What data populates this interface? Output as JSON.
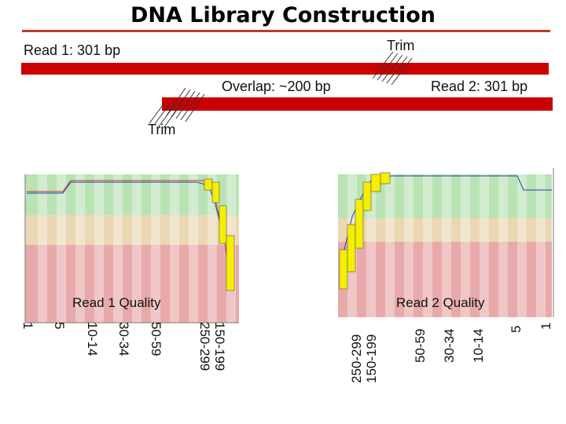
{
  "title": "DNA Library Construction",
  "read1_label": "Read 1: 301 bp",
  "read2_label": "Read 2: 301 bp",
  "overlap_label": "Overlap: ~200 bp",
  "trim_label_top": "Trim",
  "trim_label_bottom": "Trim",
  "quality_panels": {
    "read1": {
      "label": "Read 1 Quality",
      "x_ticks": [
        "1",
        "5",
        "10-14",
        "30-34",
        "50-59",
        "250-299",
        "150-199"
      ]
    },
    "read2": {
      "label": "Read 2 Quality",
      "x_ticks": [
        "250-299",
        "150-199",
        "50-59",
        "30-34",
        "10-14",
        "5",
        "1"
      ]
    }
  },
  "colors": {
    "accent": "#cc0000",
    "title_rule": "#c0392b",
    "quality_good": "#b9e3b4",
    "quality_medium": "#ead7b4",
    "quality_poor": "#e8a9aa",
    "box": "#f5ef00"
  }
}
